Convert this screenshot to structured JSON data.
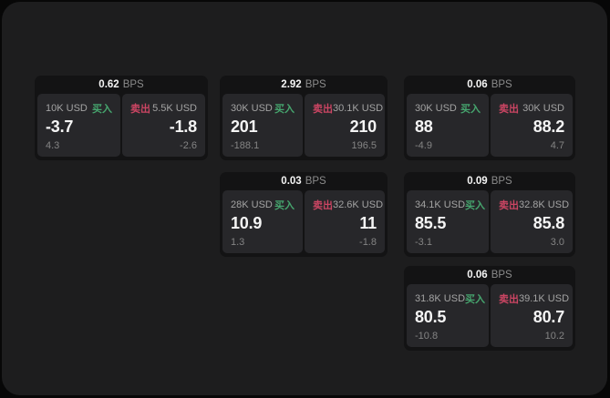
{
  "labels": {
    "bps_unit": "BPS",
    "buy": "买入",
    "sell": "卖出"
  },
  "colors": {
    "buy_green": "#46a56e",
    "sell_red": "#cb4563",
    "panel_background": "#1d1d1e",
    "card_background": "#131314",
    "side_background": "#27272a"
  },
  "cards": [
    {
      "bps": "0.62",
      "buy": {
        "amount": "10K USD",
        "price": "-3.7",
        "delta": "4.3"
      },
      "sell": {
        "amount": "5.5K USD",
        "price": "-1.8",
        "delta": "-2.6"
      }
    },
    {
      "bps": "2.92",
      "buy": {
        "amount": "30K USD",
        "price": "201",
        "delta": "-188.1"
      },
      "sell": {
        "amount": "30.1K USD",
        "price": "210",
        "delta": "196.5"
      }
    },
    {
      "bps": "0.06",
      "buy": {
        "amount": "30K USD",
        "price": "88",
        "delta": "-4.9"
      },
      "sell": {
        "amount": "30K USD",
        "price": "88.2",
        "delta": "4.7"
      }
    },
    {
      "bps": "0.03",
      "buy": {
        "amount": "28K USD",
        "price": "10.9",
        "delta": "1.3"
      },
      "sell": {
        "amount": "32.6K USD",
        "price": "11",
        "delta": "-1.8"
      }
    },
    {
      "bps": "0.09",
      "buy": {
        "amount": "34.1K USD",
        "price": "85.5",
        "delta": "-3.1"
      },
      "sell": {
        "amount": "32.8K USD",
        "price": "85.8",
        "delta": "3.0"
      }
    },
    {
      "bps": "0.06",
      "buy": {
        "amount": "31.8K USD",
        "price": "80.5",
        "delta": "-10.8"
      },
      "sell": {
        "amount": "39.1K USD",
        "price": "80.7",
        "delta": "10.2"
      }
    }
  ]
}
